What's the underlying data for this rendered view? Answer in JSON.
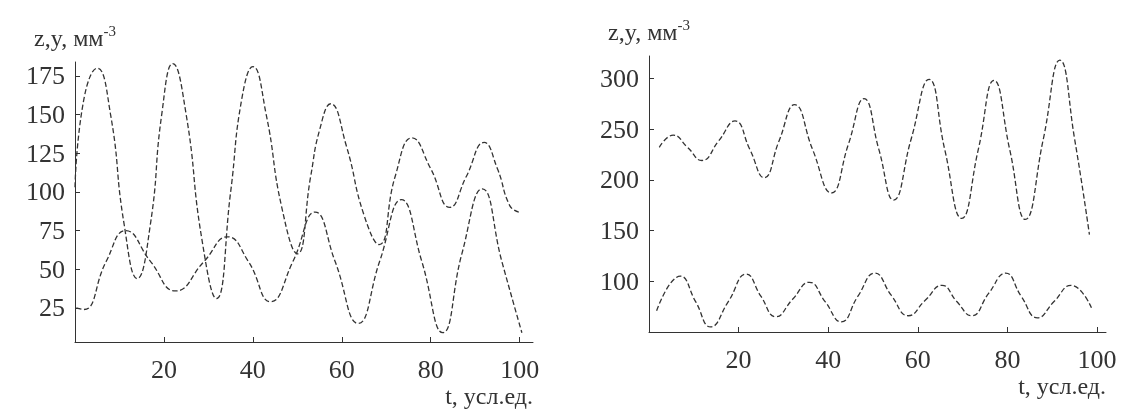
{
  "chart_data": [
    {
      "type": "line",
      "ylabel": "z,y, мм$^{-3}$",
      "xlabel": "t, усл.ед.",
      "xlim": [
        0,
        103
      ],
      "xticks": [
        20,
        40,
        60,
        80,
        100
      ],
      "ylim": [
        3,
        184
      ],
      "yticks": [
        25,
        50,
        75,
        100,
        125,
        150,
        175
      ],
      "grid": false,
      "marker": "none",
      "line_style": "dashed",
      "series": [
        {
          "color": "#333333",
          "x": [
            0,
            2,
            5,
            8,
            11,
            14,
            17,
            19.5,
            22,
            25,
            28.5,
            31.8,
            35,
            37.5,
            40,
            43,
            46.5,
            50,
            53,
            55,
            57.5,
            61,
            65,
            68.4,
            72,
            75.8,
            80,
            84.3,
            88,
            92,
            95,
            97.8,
            99.8
          ],
          "values": [
            103,
            160,
            180,
            150,
            80,
            44,
            80,
            150,
            183,
            150,
            70,
            31,
            100,
            160,
            181,
            150,
            90,
            60,
            110,
            140,
            157,
            130,
            85,
            66,
            110,
            135,
            115,
            90,
            110,
            132,
            115,
            91,
            87
          ]
        },
        {
          "color": "#333333",
          "x": [
            0.3,
            2,
            7,
            11.4,
            17,
            22.6,
            29,
            34.3,
            39,
            44,
            49,
            54,
            58.5,
            63.7,
            68.5,
            73.4,
            78,
            82.7,
            87,
            91.6,
            96,
            100.5
          ],
          "values": [
            25,
            24,
            55,
            75,
            55,
            36,
            55,
            71,
            55,
            29,
            55,
            87,
            55,
            15,
            55,
            95,
            55,
            9,
            60,
            102,
            55,
            9
          ]
        }
      ]
    },
    {
      "type": "line",
      "ylabel": "z,y, мм$^{-3}$",
      "xlabel": "t, усл.ед.",
      "xlim": [
        0,
        102
      ],
      "xticks": [
        20,
        40,
        60,
        80,
        100
      ],
      "ylim": [
        50,
        322
      ],
      "yticks": [
        100,
        150,
        200,
        250,
        300
      ],
      "grid": false,
      "marker": "none",
      "line_style": "dashed",
      "series": [
        {
          "color": "#333333",
          "x": [
            2.3,
            5.4,
            8.6,
            11.8,
            15.5,
            19.2,
            22.5,
            25.7,
            29,
            32.5,
            36.5,
            40.7,
            44.5,
            48,
            51.3,
            54.6,
            58.5,
            62.5,
            66,
            69.8,
            73.5,
            77,
            80.5,
            84,
            88,
            91.7,
            95,
            98.3
          ],
          "values": [
            232,
            244,
            232,
            219,
            238,
            258,
            230,
            202,
            238,
            274,
            230,
            187,
            235,
            280,
            230,
            180,
            240,
            299,
            230,
            162,
            230,
            298,
            230,
            161,
            240,
            318,
            240,
            146
          ]
        },
        {
          "color": "#333333",
          "x": [
            1.7,
            7,
            10.4,
            13.75,
            17.7,
            21.7,
            25,
            28.3,
            32,
            35.8,
            39.3,
            42.9,
            46.6,
            50.4,
            54.1,
            57.9,
            61.6,
            65.4,
            68.7,
            72,
            75.8,
            79.6,
            83.1,
            86.7,
            90.4,
            94.2,
            98.75
          ],
          "values": [
            71,
            105,
            80,
            55,
            80,
            107,
            85,
            65,
            82,
            99,
            80,
            60,
            85,
            108,
            86,
            66,
            81,
            96,
            80,
            66,
            88,
            108,
            85,
            64,
            80,
            96,
            74
          ]
        }
      ]
    }
  ]
}
